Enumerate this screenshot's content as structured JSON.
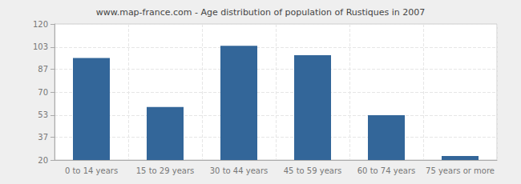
{
  "chart_data": {
    "type": "bar",
    "title": "www.map-france.com - Age distribution of population of Rustiques in 2007",
    "categories": [
      "0 to 14 years",
      "15 to 29 years",
      "30 to 44 years",
      "45 to 59 years",
      "60 to 74 years",
      "75 years or more"
    ],
    "values": [
      95,
      59,
      104,
      97,
      53,
      23
    ],
    "color": "#336699",
    "ylim": [
      20,
      120
    ],
    "yticks": [
      20,
      37,
      53,
      70,
      87,
      103,
      120
    ],
    "grid": true
  }
}
